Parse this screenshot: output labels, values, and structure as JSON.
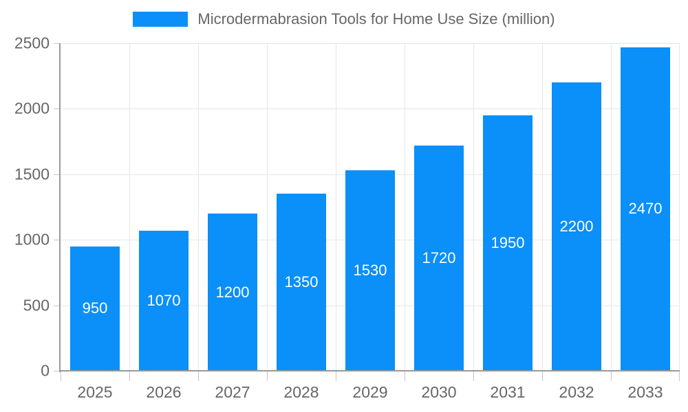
{
  "chart_data": {
    "type": "bar",
    "categories": [
      "2025",
      "2026",
      "2027",
      "2028",
      "2029",
      "2030",
      "2031",
      "2032",
      "2033"
    ],
    "values": [
      950,
      1070,
      1200,
      1350,
      1530,
      1720,
      1950,
      2200,
      2470
    ],
    "value_labels": [
      "950",
      "1070",
      "1200",
      "1350",
      "1530",
      "1720",
      "1950",
      "2200",
      "2470"
    ],
    "title": "",
    "legend_label": "Microdermabrasion Tools for Home Use Size (million)",
    "legend_position": "top",
    "xlabel": "",
    "ylabel": "",
    "ylim": [
      0,
      2500
    ],
    "yticks": [
      0,
      500,
      1000,
      1500,
      2000,
      2500
    ],
    "ytick_labels": [
      "0",
      "500",
      "1000",
      "1500",
      "2000",
      "2500"
    ],
    "grid": true
  },
  "colors": {
    "bar": "#0b8ff9",
    "bar_value_text": "#ffffff",
    "gridline": "#e6e6e6",
    "axis_line": "#999999",
    "tick": "#c6c6c6",
    "axis_text": "#666666",
    "legend_text": "#666666",
    "background": "#ffffff"
  }
}
